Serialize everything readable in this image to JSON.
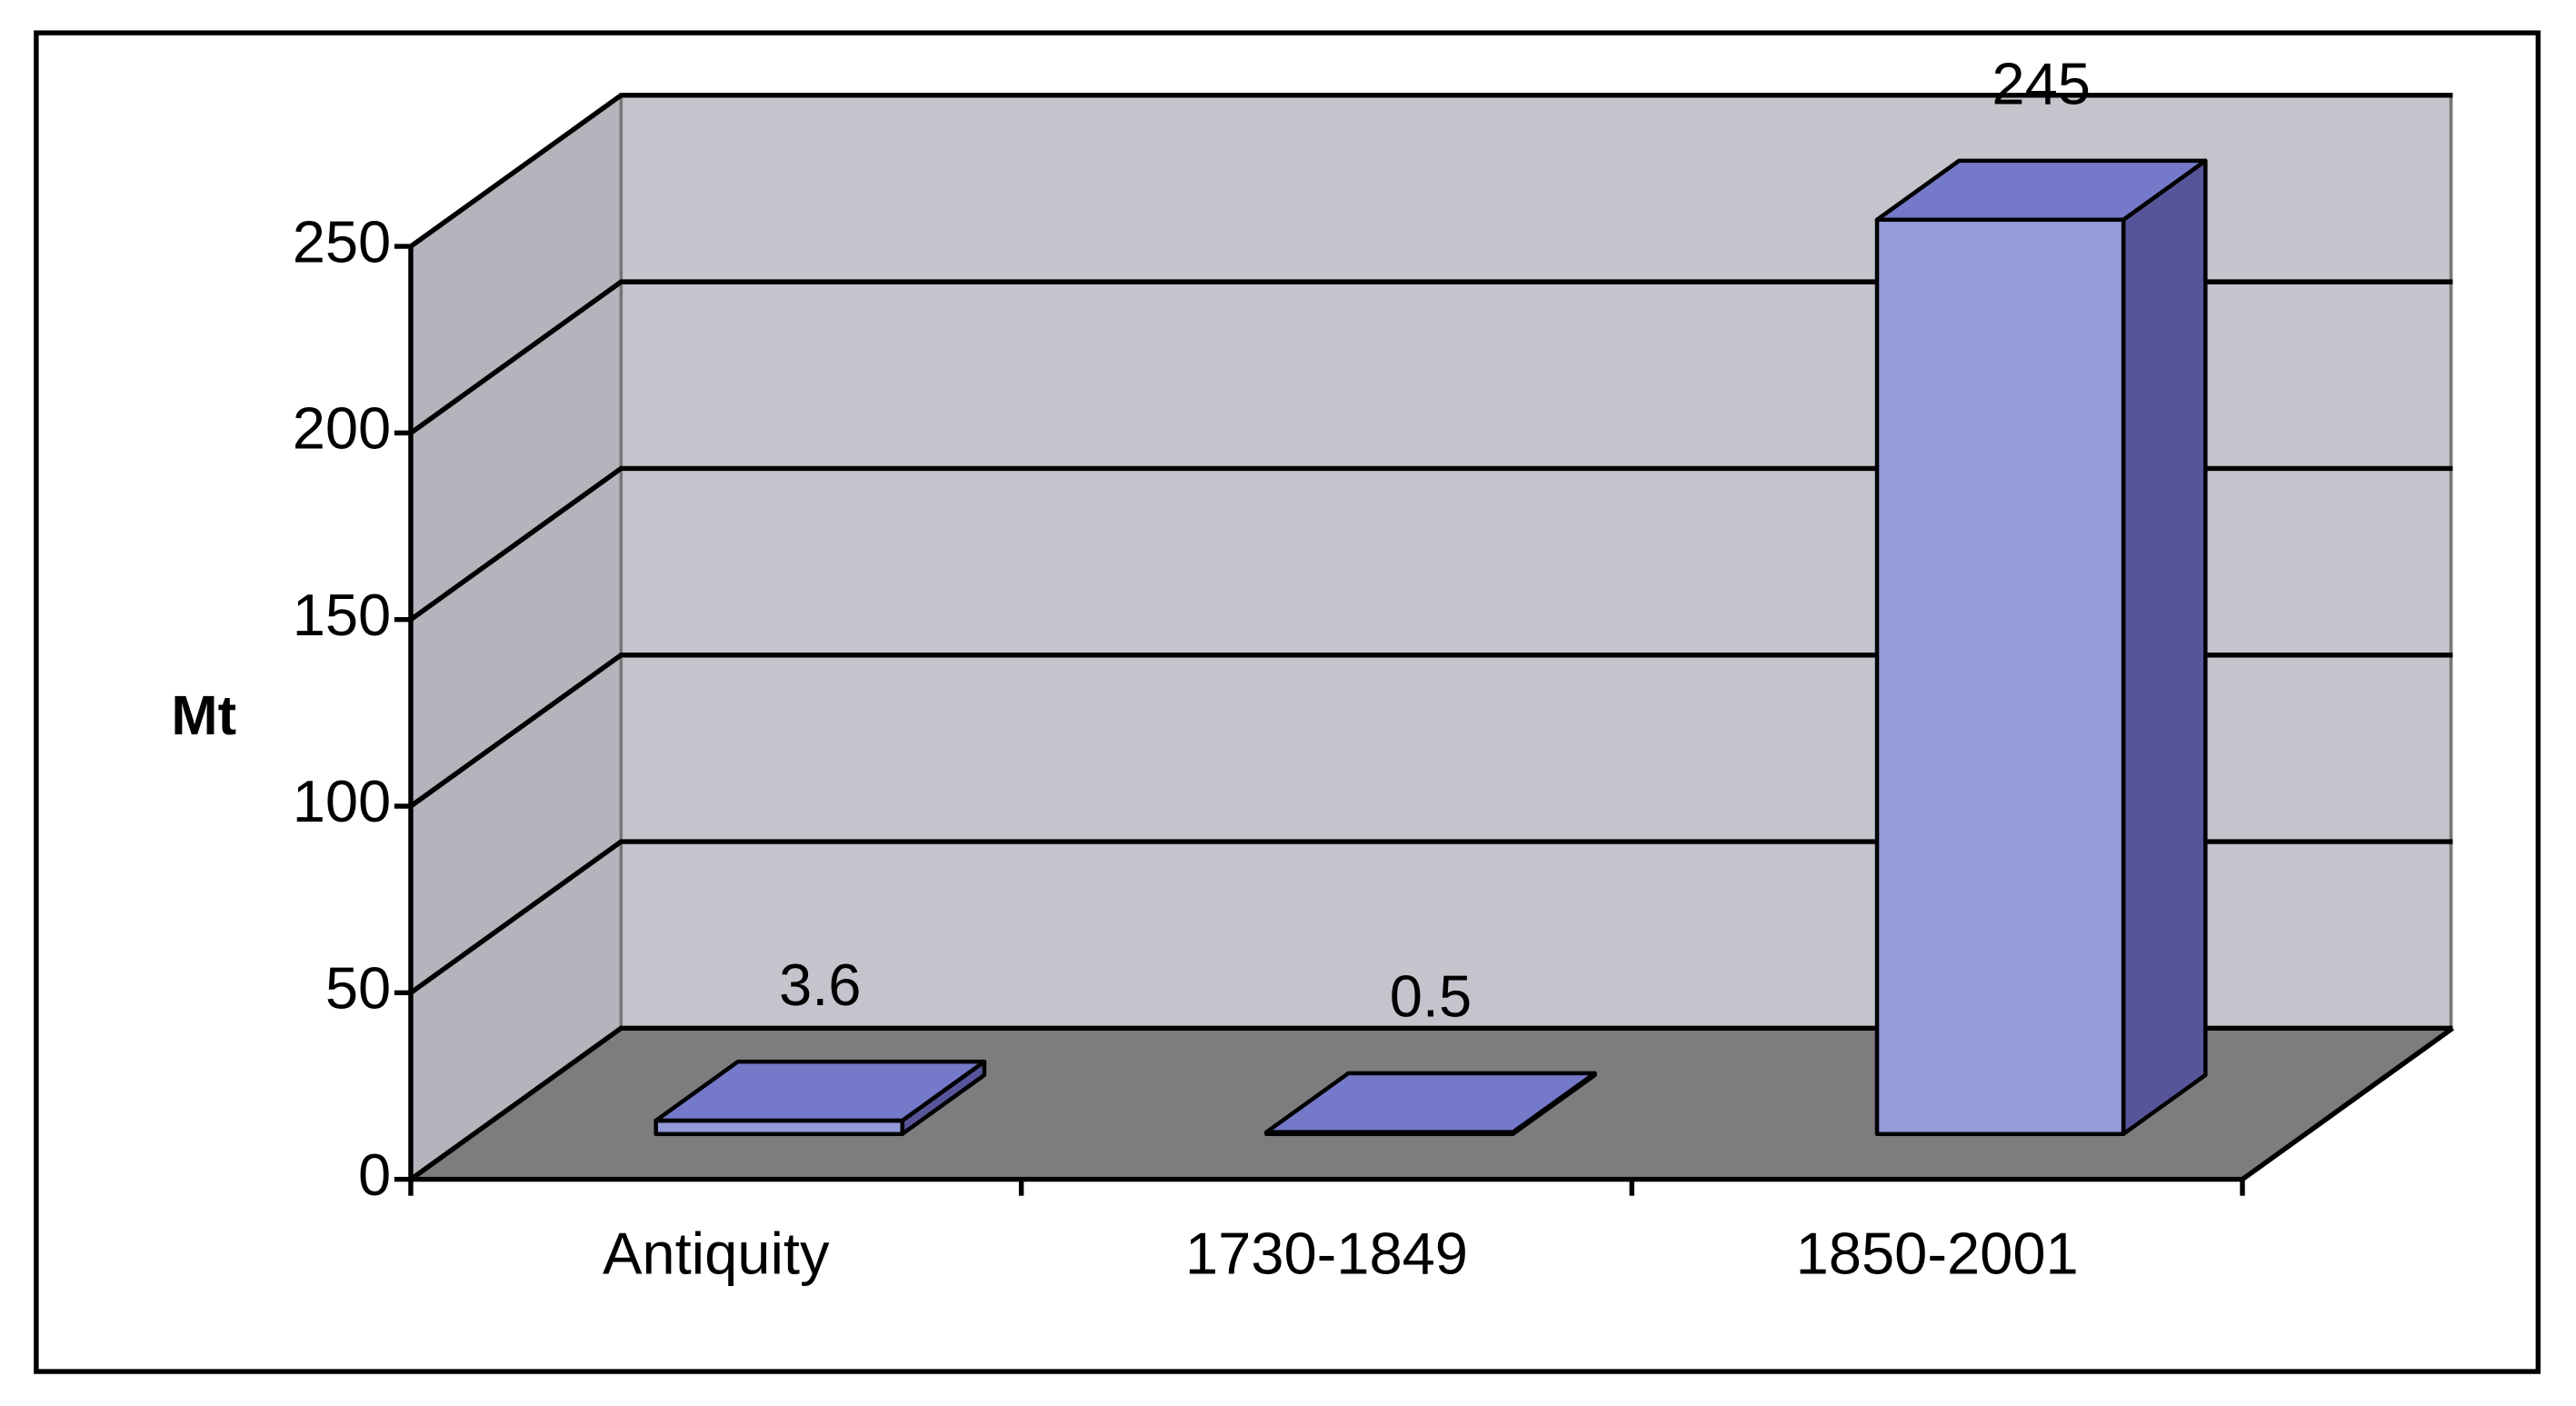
{
  "chart_data": {
    "type": "bar3d",
    "y_label": "Mt",
    "categories": [
      "Antiquity",
      "1730-1849",
      "1850-2001"
    ],
    "values": [
      3.6,
      0.5,
      245
    ],
    "color": "#939bd8",
    "ylim": [
      0,
      250
    ],
    "yticks": [
      0,
      50,
      100,
      150,
      200,
      250
    ],
    "grid": true
  }
}
